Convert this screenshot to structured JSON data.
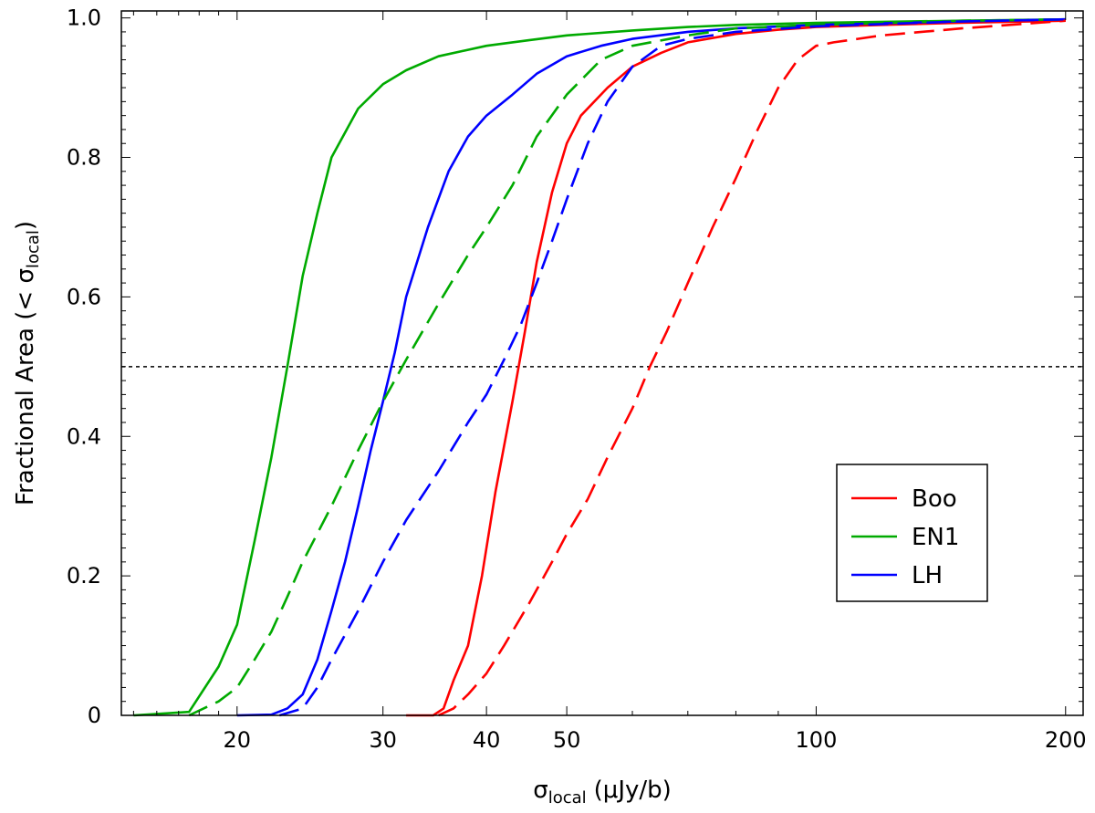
{
  "chart_data": {
    "type": "line",
    "title": "",
    "xlabel": {
      "main": "σ",
      "sub": "local",
      "units": "(μJy/b)"
    },
    "ylabel": {
      "main": "Fractional Area (< σ",
      "sub": "local",
      "close": ")"
    },
    "xscale": "log",
    "xlim": [
      14.5,
      210
    ],
    "ylim": [
      0,
      1.01
    ],
    "xticks": [
      {
        "value": 20,
        "label": "20"
      },
      {
        "value": 30,
        "label": "30"
      },
      {
        "value": 40,
        "label": "40"
      },
      {
        "value": 50,
        "label": "50"
      },
      {
        "value": 100,
        "label": "100"
      },
      {
        "value": 200,
        "label": "200"
      }
    ],
    "yticks": [
      {
        "value": 0,
        "label": "0"
      },
      {
        "value": 0.2,
        "label": "0.2"
      },
      {
        "value": 0.4,
        "label": "0.4"
      },
      {
        "value": 0.6,
        "label": "0.6"
      },
      {
        "value": 0.8,
        "label": "0.8"
      },
      {
        "value": 1.0,
        "label": "1.0"
      }
    ],
    "reference_line": {
      "y": 0.5,
      "style": "dotted",
      "color": "#000000"
    },
    "legend": {
      "placement": "lower-right",
      "entries": [
        "Boo",
        "EN1",
        "LH"
      ]
    },
    "series": [
      {
        "name": "Boo",
        "color": "#ff0000",
        "style": "solid",
        "x": [
          32,
          34.5,
          35.5,
          36.5,
          38,
          39.5,
          41,
          43,
          44.5,
          46,
          48,
          50,
          52,
          56,
          60,
          65,
          70,
          80,
          90,
          100,
          120,
          150,
          200
        ],
        "y": [
          0,
          0,
          0.01,
          0.05,
          0.1,
          0.2,
          0.32,
          0.45,
          0.55,
          0.65,
          0.75,
          0.82,
          0.86,
          0.9,
          0.93,
          0.95,
          0.965,
          0.977,
          0.983,
          0.987,
          0.99,
          0.993,
          0.996
        ]
      },
      {
        "name": "EN1",
        "color": "#00aa00",
        "style": "solid",
        "x": [
          15,
          17.5,
          19,
          20,
          21,
          22,
          23,
          24,
          25,
          26,
          28,
          30,
          32,
          35,
          40,
          45,
          50,
          60,
          70,
          80,
          100,
          150,
          200
        ],
        "y": [
          0,
          0.005,
          0.07,
          0.13,
          0.25,
          0.37,
          0.5,
          0.63,
          0.72,
          0.8,
          0.87,
          0.905,
          0.925,
          0.945,
          0.96,
          0.968,
          0.975,
          0.982,
          0.987,
          0.99,
          0.993,
          0.996,
          0.998
        ]
      },
      {
        "name": "LH",
        "color": "#0000ff",
        "style": "solid",
        "x": [
          20,
          22,
          23,
          24,
          25,
          26,
          27,
          28,
          29,
          30,
          31,
          32,
          34,
          36,
          38,
          40,
          43,
          46,
          50,
          55,
          60,
          70,
          80,
          100,
          150,
          200
        ],
        "y": [
          0,
          0.001,
          0.01,
          0.03,
          0.08,
          0.15,
          0.22,
          0.3,
          0.38,
          0.45,
          0.52,
          0.6,
          0.7,
          0.78,
          0.83,
          0.86,
          0.89,
          0.92,
          0.945,
          0.96,
          0.97,
          0.98,
          0.985,
          0.99,
          0.995,
          0.998
        ]
      },
      {
        "name": "Boo",
        "color": "#ff0000",
        "style": "dashed",
        "x": [
          35,
          36.5,
          38,
          40,
          42,
          45,
          48,
          50,
          53,
          56,
          60,
          63,
          66,
          70,
          75,
          80,
          85,
          90,
          95,
          100,
          105,
          120,
          150,
          200
        ],
        "y": [
          0,
          0.01,
          0.03,
          0.06,
          0.1,
          0.16,
          0.22,
          0.26,
          0.31,
          0.37,
          0.44,
          0.5,
          0.55,
          0.62,
          0.7,
          0.77,
          0.84,
          0.9,
          0.94,
          0.96,
          0.965,
          0.975,
          0.985,
          0.996
        ]
      },
      {
        "name": "EN1",
        "color": "#00aa00",
        "style": "dashed",
        "x": [
          17.5,
          19,
          20,
          21,
          22,
          23,
          24,
          26,
          28,
          30,
          32,
          35,
          38,
          40,
          43,
          46,
          50,
          55,
          60,
          70,
          80,
          100,
          150,
          200
        ],
        "y": [
          0,
          0.02,
          0.04,
          0.08,
          0.12,
          0.17,
          0.22,
          0.3,
          0.38,
          0.45,
          0.51,
          0.59,
          0.66,
          0.7,
          0.76,
          0.83,
          0.89,
          0.94,
          0.96,
          0.975,
          0.985,
          0.99,
          0.996,
          0.998
        ]
      },
      {
        "name": "LH",
        "color": "#0000ff",
        "style": "dashed",
        "x": [
          22.5,
          24,
          25,
          26,
          28,
          30,
          32,
          35,
          38,
          40,
          42,
          44,
          46,
          48,
          50,
          53,
          56,
          60,
          65,
          70,
          80,
          100,
          150,
          200
        ],
        "y": [
          0,
          0.01,
          0.04,
          0.08,
          0.15,
          0.22,
          0.28,
          0.35,
          0.42,
          0.46,
          0.51,
          0.56,
          0.62,
          0.68,
          0.74,
          0.82,
          0.88,
          0.93,
          0.96,
          0.97,
          0.98,
          0.988,
          0.995,
          0.998
        ]
      }
    ]
  }
}
